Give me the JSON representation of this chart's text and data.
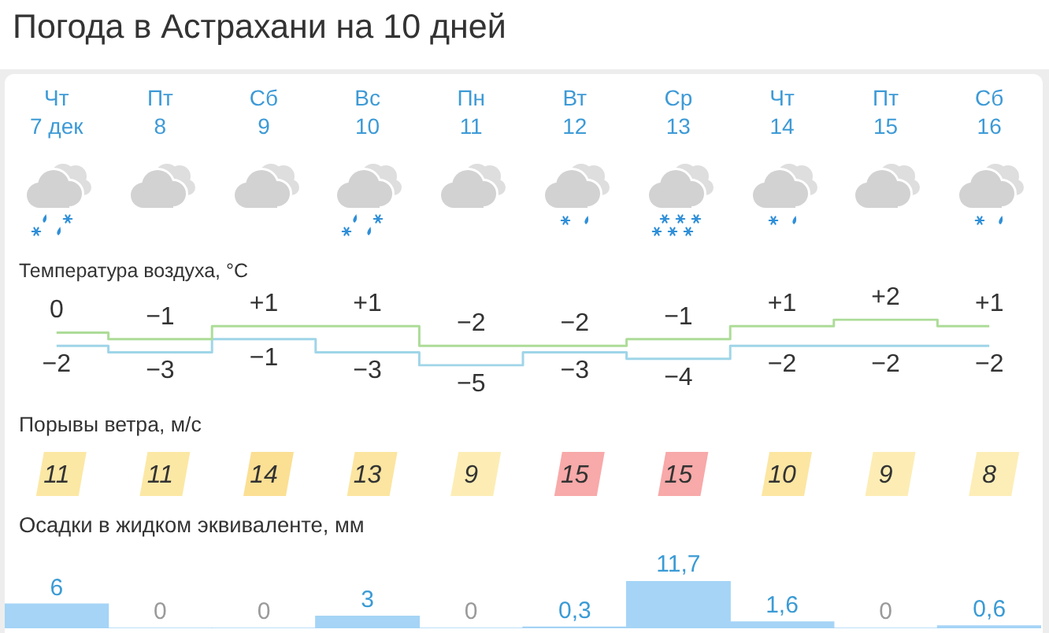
{
  "chart_data": [
    {
      "type": "step",
      "title": "Погода в Астрахани на 10 дней",
      "subtitle": "Температура воздуха, °C",
      "categories": [
        "Чт\n7 дек",
        "Пт\n8",
        "Сб\n9",
        "Вс\n10",
        "Пн\n11",
        "Вт\n12",
        "Ср\n13",
        "Чт\n14",
        "Пт\n15",
        "Сб\n16"
      ],
      "tick_labels": "x",
      "series": [
        {
          "color": "#addc98",
          "values": [
            0,
            -1,
            1,
            1,
            -2,
            -2,
            -1,
            1,
            2,
            1
          ],
          "value_labels": [
            "0",
            "−1",
            "+1",
            "+1",
            "−2",
            "−2",
            "−1",
            "+1",
            "+2",
            "+1"
          ]
        },
        {
          "color": "#9fd5e8",
          "values": [
            -2,
            -3,
            -1,
            -3,
            -5,
            -3,
            -4,
            -2,
            -2,
            -2
          ],
          "value_labels": [
            "−2",
            "−3",
            "−1",
            "−3",
            "−5",
            "−3",
            "−4",
            "−2",
            "−2",
            "−2"
          ]
        }
      ]
    },
    {
      "type": "other",
      "title": "Порывы ветра, м/с",
      "values": [
        11,
        11,
        14,
        13,
        9,
        15,
        15,
        10,
        9,
        8
      ],
      "colors": [
        "#fce8a5",
        "#fce8a5",
        "#fbdf93",
        "#fce5a0",
        "#fdedb5",
        "#f8a9a9",
        "#f8a9a9",
        "#fce6a2",
        "#fdedb5",
        "#fdeeb8"
      ],
      "data_labels": true
    },
    {
      "type": "bar",
      "title": "Осадки в жидком эквиваленте, мм",
      "categories": [
        null,
        null,
        null,
        null,
        null,
        null,
        null,
        null,
        null,
        null
      ],
      "tick_labels": "x",
      "values": [
        6,
        0,
        0,
        3,
        0,
        0.3,
        11.7,
        1.6,
        0,
        0.6
      ],
      "color": "#a5d4f6",
      "value_labels": [
        "6",
        "0",
        "0",
        "3",
        "0",
        "0,3",
        "11,7",
        "1,6",
        "0",
        "0,6"
      ]
    }
  ]
}
